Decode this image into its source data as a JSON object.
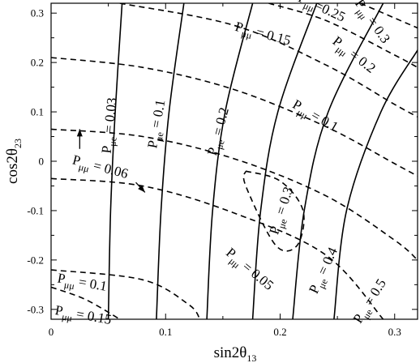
{
  "chart_data": {
    "type": "line",
    "xlabel": "sin2θ",
    "xlabel_sub": "13",
    "ylabel": "cos2θ",
    "ylabel_sub": "23",
    "xlim": [
      0,
      0.32
    ],
    "ylim": [
      -0.32,
      0.32
    ],
    "grid": false,
    "x_ticks": [
      {
        "v": 0,
        "label": "0"
      },
      {
        "v": 0.1,
        "label": "0.1"
      },
      {
        "v": 0.2,
        "label": "0.2"
      },
      {
        "v": 0.3,
        "label": "0.3"
      }
    ],
    "y_ticks": [
      {
        "v": 0.3,
        "label": "0.3"
      },
      {
        "v": 0.2,
        "label": "0.2"
      },
      {
        "v": 0.1,
        "label": "0.1"
      },
      {
        "v": 0,
        "label": "0"
      },
      {
        "v": -0.1,
        "label": "-0.1"
      },
      {
        "v": -0.2,
        "label": "-0.2"
      },
      {
        "v": -0.3,
        "label": "-0.3"
      }
    ],
    "solid_series": [
      {
        "value": "0.03",
        "points": [
          [
            0.05,
            -0.32
          ],
          [
            0.052,
            -0.1
          ],
          [
            0.056,
            0.1
          ],
          [
            0.062,
            0.32
          ]
        ]
      },
      {
        "value": "0.1",
        "points": [
          [
            0.092,
            -0.32
          ],
          [
            0.096,
            -0.1
          ],
          [
            0.103,
            0.1
          ],
          [
            0.116,
            0.32
          ]
        ]
      },
      {
        "value": "0.2",
        "points": [
          [
            0.136,
            -0.32
          ],
          [
            0.141,
            -0.1
          ],
          [
            0.152,
            0.1
          ],
          [
            0.176,
            0.32
          ]
        ]
      },
      {
        "value": "0.3",
        "points": [
          [
            0.176,
            -0.32
          ],
          [
            0.183,
            -0.1
          ],
          [
            0.198,
            0.1
          ],
          [
            0.232,
            0.32
          ]
        ]
      },
      {
        "value": "0.4",
        "points": [
          [
            0.211,
            -0.32
          ],
          [
            0.221,
            -0.1
          ],
          [
            0.242,
            0.1
          ],
          [
            0.29,
            0.32
          ]
        ]
      },
      {
        "value": "0.5",
        "points": [
          [
            0.247,
            -0.32
          ],
          [
            0.258,
            -0.1
          ],
          [
            0.288,
            0.1
          ],
          [
            0.32,
            0.225
          ]
        ]
      }
    ],
    "dashed_series": [
      {
        "value": "0.06",
        "points": [
          [
            0,
            -0.035
          ],
          [
            0.08,
            -0.05
          ],
          [
            0.16,
            -0.105
          ],
          [
            0.24,
            -0.19
          ],
          [
            0.29,
            -0.32
          ]
        ]
      },
      {
        "value": "0.1",
        "points": [
          [
            0,
            0.065
          ],
          [
            0.08,
            0.05
          ],
          [
            0.16,
            0.005
          ],
          [
            0.24,
            -0.07
          ],
          [
            0.3,
            -0.16
          ],
          [
            0.32,
            -0.2
          ]
        ]
      },
      {
        "value": "0.15",
        "points": [
          [
            0,
            0.21
          ],
          [
            0.08,
            0.19
          ],
          [
            0.16,
            0.145
          ],
          [
            0.24,
            0.07
          ],
          [
            0.3,
            -0.005
          ],
          [
            0.32,
            -0.03
          ]
        ]
      },
      {
        "value": "0.2",
        "points": [
          [
            0.06,
            0.32
          ],
          [
            0.16,
            0.275
          ],
          [
            0.24,
            0.195
          ],
          [
            0.3,
            0.115
          ],
          [
            0.32,
            0.09
          ]
        ]
      },
      {
        "value": "0.25",
        "points": [
          [
            0.19,
            0.32
          ],
          [
            0.24,
            0.285
          ],
          [
            0.3,
            0.215
          ],
          [
            0.32,
            0.19
          ]
        ]
      },
      {
        "value": "0.3",
        "points": [
          [
            0.27,
            0.32
          ],
          [
            0.3,
            0.29
          ],
          [
            0.32,
            0.27
          ]
        ]
      },
      {
        "value": "0.15",
        "points": [
          [
            0,
            -0.255
          ],
          [
            0.03,
            -0.28
          ],
          [
            0.06,
            -0.32
          ]
        ]
      },
      {
        "value": "0.1",
        "points": [
          [
            0,
            -0.22
          ],
          [
            0.08,
            -0.24
          ],
          [
            0.12,
            -0.29
          ],
          [
            0.13,
            -0.32
          ]
        ]
      },
      {
        "value": "0.05",
        "points": [
          [
            0.17,
            -0.02
          ],
          [
            0.2,
            -0.04
          ],
          [
            0.22,
            -0.1
          ],
          [
            0.215,
            -0.17
          ],
          [
            0.196,
            -0.17
          ],
          [
            0.17,
            -0.05
          ],
          [
            0.17,
            -0.02
          ]
        ]
      }
    ],
    "annotations": [
      {
        "id": "pue-003",
        "sub": "μe",
        "text": " = 0.03",
        "x": 0.052,
        "y": 0.015,
        "angle": -84
      },
      {
        "id": "pue-01",
        "sub": "μe",
        "text": " = 0.1",
        "x": 0.092,
        "y": 0.025,
        "angle": -80
      },
      {
        "id": "pue-02",
        "sub": "μe",
        "text": " = 0.2",
        "x": 0.144,
        "y": 0.01,
        "angle": -75
      },
      {
        "id": "pue-03",
        "sub": "μe",
        "text": " = 0.3",
        "x": 0.198,
        "y": -0.15,
        "angle": -72
      },
      {
        "id": "pue-04",
        "sub": "μe",
        "text": " = 0.4",
        "x": 0.232,
        "y": -0.27,
        "angle": -65
      },
      {
        "id": "pue-05",
        "sub": "μe",
        "text": " = 0.5",
        "x": 0.27,
        "y": -0.33,
        "angle": -58
      },
      {
        "id": "puu-025",
        "sub": "μμ",
        "text": "=0.25",
        "x": 0.215,
        "y": 0.325,
        "angle": 25
      },
      {
        "id": "puu-03",
        "sub": "μμ",
        "text": " = 0.3",
        "x": 0.265,
        "y": 0.32,
        "angle": 55
      },
      {
        "id": "puu-015-top",
        "sub": "μμ",
        "text": " = 0.15",
        "x": 0.16,
        "y": 0.265,
        "angle": 15
      },
      {
        "id": "puu-02",
        "sub": "μμ",
        "text": " = 0.2",
        "x": 0.245,
        "y": 0.24,
        "angle": 38
      },
      {
        "id": "puu-01-mid",
        "sub": "μμ",
        "text": " = 0.1",
        "x": 0.21,
        "y": 0.11,
        "angle": 30
      },
      {
        "id": "puu-006",
        "sub": "μμ",
        "text": " = 0.06",
        "x": 0.018,
        "y": -0.005,
        "angle": 15
      },
      {
        "id": "puu-005",
        "sub": "μμ",
        "text": " = 0.05",
        "x": 0.152,
        "y": -0.188,
        "angle": 40
      },
      {
        "id": "puu-01-low",
        "sub": "μμ",
        "text": " = 0.1",
        "x": 0.005,
        "y": -0.245,
        "angle": 10
      },
      {
        "id": "puu-015-low",
        "sub": "μμ",
        "text": " = 0.15",
        "x": 0.003,
        "y": -0.31,
        "angle": 10
      }
    ],
    "arrows": [
      {
        "id": "arrow-up",
        "from": [
          0.025,
          0.025
        ],
        "to": [
          0.025,
          0.065
        ]
      },
      {
        "id": "arrow-diag",
        "from": [
          0.074,
          -0.043
        ],
        "to": [
          0.082,
          -0.063
        ]
      }
    ]
  }
}
